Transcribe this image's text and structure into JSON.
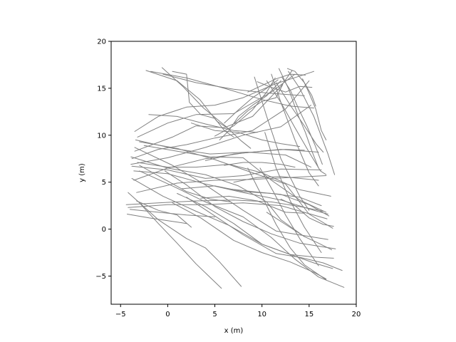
{
  "chart_data": {
    "type": "line",
    "title": "",
    "xlabel": "x (m)",
    "ylabel": "y (m)",
    "xlim": [
      -6,
      20
    ],
    "ylim": [
      -8,
      20
    ],
    "xticks": [
      -5,
      0,
      5,
      10,
      15,
      20
    ],
    "yticks": [
      -5,
      0,
      5,
      10,
      15,
      20
    ],
    "grid": false,
    "legend": "none",
    "series_color": "#808080",
    "series": [
      {
        "x": [
          -2.3,
          1.0,
          3.4,
          5.2,
          6.6
        ],
        "y": [
          16.9,
          15.8,
          13.8,
          11.5,
          10.6
        ]
      },
      {
        "x": [
          -0.6,
          1.6,
          3.8,
          6.1,
          7.8,
          8.8
        ],
        "y": [
          17.2,
          15.2,
          12.9,
          11.0,
          9.4,
          8.6
        ]
      },
      {
        "x": [
          -1.8,
          2.0,
          6.0,
          10.0,
          13.0,
          15.5
        ],
        "y": [
          16.8,
          16.1,
          15.0,
          13.8,
          13.1,
          12.9
        ]
      },
      {
        "x": [
          -0.5,
          3.0,
          7.0,
          10.5,
          14.5
        ],
        "y": [
          16.5,
          15.6,
          14.9,
          14.5,
          14.2
        ]
      },
      {
        "x": [
          0.5,
          2.0,
          2.3,
          3.5,
          5.0,
          6.0,
          7.0
        ],
        "y": [
          16.8,
          16.5,
          13.5,
          12.2,
          11.8,
          10.5,
          9.8
        ]
      },
      {
        "x": [
          -3.5,
          -1.0,
          2.0,
          5.0,
          8.0,
          11.5,
          14.0,
          15.5
        ],
        "y": [
          10.4,
          12.0,
          13.0,
          13.2,
          14.0,
          15.5,
          16.3,
          16.8
        ]
      },
      {
        "x": [
          -3.2,
          0.0,
          3.0,
          7.0,
          11.0,
          13.5
        ],
        "y": [
          9.8,
          11.3,
          12.2,
          12.3,
          14.6,
          16.5
        ]
      },
      {
        "x": [
          -3.5,
          0.5,
          3.0,
          6.0,
          9.0,
          12.0,
          13.2
        ],
        "y": [
          8.3,
          9.8,
          11.0,
          10.8,
          12.0,
          15.2,
          16.9
        ]
      },
      {
        "x": [
          -3.8,
          -1.0,
          2.0,
          5.0,
          9.0,
          12.5,
          15.0
        ],
        "y": [
          7.5,
          8.5,
          9.0,
          9.7,
          10.5,
          12.8,
          15.8
        ]
      },
      {
        "x": [
          -3.9,
          0.0,
          4.0,
          8.0,
          12.0,
          15.2
        ],
        "y": [
          6.9,
          7.6,
          8.7,
          10.0,
          10.9,
          13.2
        ]
      },
      {
        "x": [
          -3.6,
          0.0,
          4.0,
          8.0,
          12.0,
          16.0
        ],
        "y": [
          5.2,
          6.5,
          7.5,
          8.1,
          8.5,
          8.2
        ]
      },
      {
        "x": [
          -3.3,
          1.0,
          5.0,
          9.0,
          13.0,
          16.8
        ],
        "y": [
          3.9,
          4.9,
          5.2,
          5.3,
          5.5,
          5.7
        ]
      },
      {
        "x": [
          -4.4,
          -1.0,
          3.0,
          7.0,
          11.0,
          14.0,
          16.5
        ],
        "y": [
          2.6,
          2.8,
          3.0,
          3.1,
          2.9,
          2.4,
          1.9
        ]
      },
      {
        "x": [
          -4.2,
          0.0,
          4.0,
          8.0,
          12.0,
          16.9
        ],
        "y": [
          2.3,
          2.6,
          2.6,
          2.8,
          2.5,
          1.1
        ]
      },
      {
        "x": [
          -4.0,
          -1.0,
          2.0,
          5.0
        ],
        "y": [
          2.1,
          1.8,
          1.5,
          1.3
        ]
      },
      {
        "x": [
          -4.3,
          -2.0,
          0.0,
          2.0
        ],
        "y": [
          1.6,
          1.2,
          0.9,
          0.6
        ]
      },
      {
        "x": [
          -3.0,
          -1.0,
          1.0,
          3.0,
          5.7
        ],
        "y": [
          2.8,
          0.6,
          -1.5,
          -3.7,
          -6.3
        ]
      },
      {
        "x": [
          -4.2,
          -1.0,
          2.0,
          4.0,
          5.5,
          7.8
        ],
        "y": [
          3.9,
          1.0,
          -1.0,
          -2.0,
          -3.5,
          -6.1
        ]
      },
      {
        "x": [
          -3.3,
          -1.0,
          1.0,
          2.5
        ],
        "y": [
          3.0,
          2.0,
          1.5,
          0.2
        ]
      },
      {
        "x": [
          -3.8,
          -0.5,
          3.0,
          6.5,
          10.0,
          13.0,
          15.8,
          17.6
        ],
        "y": [
          5.4,
          3.5,
          1.9,
          0.4,
          -1.6,
          -2.7,
          -3.0,
          -3.1
        ]
      },
      {
        "x": [
          -3.0,
          0.5,
          4.0,
          8.0,
          11.0,
          13.5,
          16.0,
          18.7
        ],
        "y": [
          6.2,
          4.6,
          2.9,
          1.3,
          -0.9,
          -3.2,
          -5.1,
          -6.2
        ]
      },
      {
        "x": [
          -3.5,
          0.5,
          4.0,
          8.0,
          11.5,
          14.5,
          17.0
        ],
        "y": [
          8.7,
          6.8,
          4.7,
          2.0,
          -0.2,
          -0.7,
          -1.1
        ]
      },
      {
        "x": [
          -3.9,
          0.0,
          4.0,
          7.5,
          10.5,
          12.0,
          14.5
        ],
        "y": [
          7.7,
          6.5,
          5.8,
          4.6,
          2.9,
          1.0,
          -0.8
        ]
      },
      {
        "x": [
          -3.0,
          1.0,
          5.0,
          9.0,
          12.5,
          15.0,
          17.5
        ],
        "y": [
          9.3,
          8.6,
          7.4,
          6.0,
          4.8,
          1.6,
          0.1
        ]
      },
      {
        "x": [
          -2.5,
          1.0,
          4.5,
          8.0,
          11.0,
          14.0,
          16.8
        ],
        "y": [
          8.9,
          8.3,
          7.7,
          7.6,
          5.2,
          3.1,
          1.8
        ]
      },
      {
        "x": [
          -3.2,
          0.0,
          3.0,
          6.5,
          10.0,
          14.0,
          17.3
        ],
        "y": [
          7.1,
          6.6,
          6.6,
          6.9,
          6.0,
          4.2,
          3.5
        ]
      },
      {
        "x": [
          -3.6,
          0.0,
          4.0,
          8.0,
          12.0,
          15.5,
          17.0
        ],
        "y": [
          6.2,
          5.9,
          4.8,
          3.9,
          3.1,
          2.0,
          1.6
        ]
      },
      {
        "x": [
          -3.4,
          0.5,
          4.5,
          8.5,
          12.5,
          15.2
        ],
        "y": [
          9.5,
          8.6,
          8.0,
          8.2,
          7.9,
          6.6
        ]
      },
      {
        "x": [
          -3.8,
          0.0,
          4.0,
          8.0,
          12.0,
          16.3
        ],
        "y": [
          6.7,
          6.3,
          5.4,
          5.7,
          6.4,
          6.3
        ]
      },
      {
        "x": [
          1.5,
          5.0,
          8.0,
          11.0,
          14.0,
          16.3
        ],
        "y": [
          4.3,
          4.6,
          4.0,
          3.8,
          3.4,
          2.5
        ]
      },
      {
        "x": [
          6.3,
          9.0,
          12.0,
          15.0,
          17.1
        ],
        "y": [
          4.3,
          4.0,
          3.7,
          2.6,
          1.4
        ]
      },
      {
        "x": [
          -0.3,
          2.0,
          5.0,
          8.0,
          11.0,
          14.0,
          17.8
        ],
        "y": [
          6.2,
          4.7,
          2.4,
          0.8,
          -0.5,
          -1.5,
          -2.1
        ]
      },
      {
        "x": [
          1.0,
          4.0,
          7.0,
          10.0,
          13.0,
          15.5,
          17.5
        ],
        "y": [
          3.8,
          2.4,
          0.6,
          -1.6,
          -2.7,
          -3.6,
          -4.2
        ]
      },
      {
        "x": [
          2.0,
          5.0,
          8.0,
          11.5,
          14.0,
          16.5,
          18.5
        ],
        "y": [
          3.4,
          1.4,
          -0.6,
          -2.6,
          -3.0,
          -3.6,
          -4.4
        ]
      },
      {
        "x": [
          0.5,
          3.5,
          7.0,
          10.0,
          13.0,
          15.5,
          16.8
        ],
        "y": [
          2.8,
          1.2,
          -1.2,
          -2.5,
          -3.5,
          -4.6,
          -5.3
        ]
      },
      {
        "x": [
          8.5,
          10.0,
          11.5,
          13.0,
          14.5,
          16.8
        ],
        "y": [
          6.5,
          3.5,
          0.5,
          -2.0,
          -3.8,
          -5.4
        ]
      },
      {
        "x": [
          9.8,
          11.2,
          12.5,
          14.0,
          16.0
        ],
        "y": [
          6.5,
          4.0,
          1.5,
          -1.0,
          -3.9
        ]
      },
      {
        "x": [
          10.3,
          11.5,
          13.0,
          14.5,
          16.3
        ],
        "y": [
          10.3,
          6.5,
          3.0,
          0.2,
          -2.5
        ]
      },
      {
        "x": [
          9.2,
          10.5,
          12.0,
          14.0,
          15.0
        ],
        "y": [
          16.2,
          12.0,
          7.5,
          3.5,
          2.0
        ]
      },
      {
        "x": [
          11.0,
          12.0,
          13.5,
          15.0,
          16.0
        ],
        "y": [
          16.5,
          13.5,
          9.5,
          6.0,
          4.6
        ]
      },
      {
        "x": [
          11.8,
          12.8,
          13.8,
          14.6,
          15.3,
          16.0
        ],
        "y": [
          17.1,
          15.0,
          12.2,
          10.3,
          8.3,
          6.5
        ]
      },
      {
        "x": [
          12.1,
          13.0,
          13.8,
          14.8,
          15.6,
          16.4
        ],
        "y": [
          16.2,
          14.8,
          13.0,
          10.9,
          9.0,
          6.9
        ]
      },
      {
        "x": [
          10.5,
          12.0,
          13.5,
          15.0,
          16.2,
          16.8
        ],
        "y": [
          15.8,
          13.5,
          10.8,
          8.2,
          6.2,
          5.8
        ]
      },
      {
        "x": [
          11.5,
          13.0,
          14.5,
          15.8,
          16.5
        ],
        "y": [
          15.6,
          13.2,
          11.0,
          9.0,
          8.2
        ]
      },
      {
        "x": [
          12.8,
          14.0,
          15.5,
          17.0,
          17.7
        ],
        "y": [
          16.8,
          15.0,
          12.0,
          8.0,
          5.8
        ]
      },
      {
        "x": [
          14.3,
          15.0,
          15.7,
          16.3,
          16.8
        ],
        "y": [
          16.0,
          14.5,
          12.8,
          10.5,
          9.5
        ]
      },
      {
        "x": [
          12.7,
          13.5,
          14.5,
          15.3,
          15.7
        ],
        "y": [
          17.1,
          16.8,
          15.6,
          14.2,
          13.1
        ]
      },
      {
        "x": [
          9.5,
          11.0,
          12.5,
          14.0,
          15.3
        ],
        "y": [
          15.7,
          15.1,
          14.6,
          15.2,
          15.1
        ]
      },
      {
        "x": [
          8.5,
          10.0,
          11.5,
          13.0,
          14.6
        ],
        "y": [
          14.6,
          15.3,
          16.0,
          16.5,
          16.4
        ]
      },
      {
        "x": [
          6.0,
          7.5,
          9.0,
          10.5,
          11.7
        ],
        "y": [
          11.3,
          12.7,
          14.0,
          15.0,
          15.9
        ]
      },
      {
        "x": [
          5.0,
          7.0,
          9.0,
          10.5,
          11.4
        ],
        "y": [
          9.9,
          11.0,
          12.7,
          14.6,
          16.1
        ]
      },
      {
        "x": [
          5.5,
          6.5,
          7.5,
          9.0,
          10.5,
          12.0
        ],
        "y": [
          9.5,
          10.5,
          12.0,
          13.2,
          14.2,
          15.8
        ]
      },
      {
        "x": [
          7.0,
          8.5,
          10.0,
          11.5,
          12.2
        ],
        "y": [
          11.2,
          12.6,
          13.6,
          14.0,
          15.4
        ]
      },
      {
        "x": [
          2.5,
          5.0,
          7.5,
          10.0,
          12.0,
          14.0
        ],
        "y": [
          11.3,
          10.5,
          10.3,
          9.5,
          9.1,
          8.8
        ]
      },
      {
        "x": [
          4.0,
          7.0,
          10.0,
          12.5,
          14.5
        ],
        "y": [
          7.3,
          8.0,
          8.3,
          8.5,
          8.4
        ]
      },
      {
        "x": [
          6.0,
          8.0,
          10.0,
          12.0,
          13.5
        ],
        "y": [
          6.8,
          7.1,
          7.1,
          6.9,
          6.6
        ]
      },
      {
        "x": [
          7.0,
          9.5,
          12.0,
          14.0,
          16.0
        ],
        "y": [
          5.0,
          5.5,
          5.6,
          5.4,
          5.2
        ]
      },
      {
        "x": [
          3.5,
          6.5,
          9.5,
          12.5,
          14.5
        ],
        "y": [
          3.3,
          3.5,
          3.0,
          1.8,
          1.7
        ]
      },
      {
        "x": [
          12.0,
          13.5,
          15.0,
          16.5,
          17.6
        ],
        "y": [
          3.2,
          2.5,
          1.2,
          0.5,
          0.3
        ]
      },
      {
        "x": [
          10.5,
          12.5,
          14.5,
          16.0,
          17.4
        ],
        "y": [
          1.8,
          0.5,
          -0.8,
          -1.5,
          -2.2
        ]
      },
      {
        "x": [
          -3.0,
          -0.5,
          2.0,
          4.5,
          6.7
        ],
        "y": [
          6.8,
          5.4,
          4.0,
          3.2,
          2.9
        ]
      },
      {
        "x": [
          -2.0,
          1.0,
          4.0,
          7.0,
          9.5
        ],
        "y": [
          12.2,
          12.0,
          11.2,
          10.5,
          10.3
        ]
      }
    ]
  }
}
